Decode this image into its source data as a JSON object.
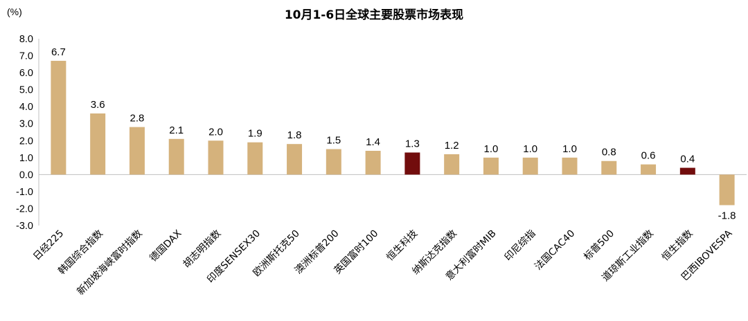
{
  "chart_data": {
    "type": "bar",
    "title": "10月1-6日全球主要股票市场表现",
    "y_unit": "(%)",
    "ylim": [
      -3.0,
      8.0
    ],
    "y_ticks": [
      "8.0",
      "7.0",
      "6.0",
      "5.0",
      "4.0",
      "3.0",
      "2.0",
      "1.0",
      "0.0",
      "-1.0",
      "-2.0",
      "-3.0"
    ],
    "grid": false,
    "legend": "none",
    "categories": [
      "日经225",
      "韩国综合指数",
      "新加坡海峡富时指数",
      "德国DAX",
      "胡志明指数",
      "印度SENSEX30",
      "欧洲斯托克50",
      "澳洲标普200",
      "英国富时100",
      "恒生科技",
      "纳斯达克指数",
      "意大利富时MIB",
      "印尼综指",
      "法国CAC40",
      "标普500",
      "道琼斯工业指数",
      "恒生指数",
      "巴西IBOVESPA"
    ],
    "values": [
      6.7,
      3.6,
      2.8,
      2.1,
      2.0,
      1.9,
      1.8,
      1.5,
      1.4,
      1.3,
      1.2,
      1.0,
      1.0,
      1.0,
      0.8,
      0.6,
      0.4,
      -1.8
    ],
    "value_labels": [
      "6.7",
      "3.6",
      "2.8",
      "2.1",
      "2.0",
      "1.9",
      "1.8",
      "1.5",
      "1.4",
      "1.3",
      "1.2",
      "1.0",
      "1.0",
      "1.0",
      "0.8",
      "0.6",
      "0.4",
      "-1.8"
    ],
    "bar_colors": [
      "#d5b27c",
      "#d5b27c",
      "#d5b27c",
      "#d5b27c",
      "#d5b27c",
      "#d5b27c",
      "#d5b27c",
      "#d5b27c",
      "#d5b27c",
      "#720d0d",
      "#d5b27c",
      "#d5b27c",
      "#d5b27c",
      "#d5b27c",
      "#d5b27c",
      "#d5b27c",
      "#720d0d",
      "#d5b27c"
    ]
  }
}
